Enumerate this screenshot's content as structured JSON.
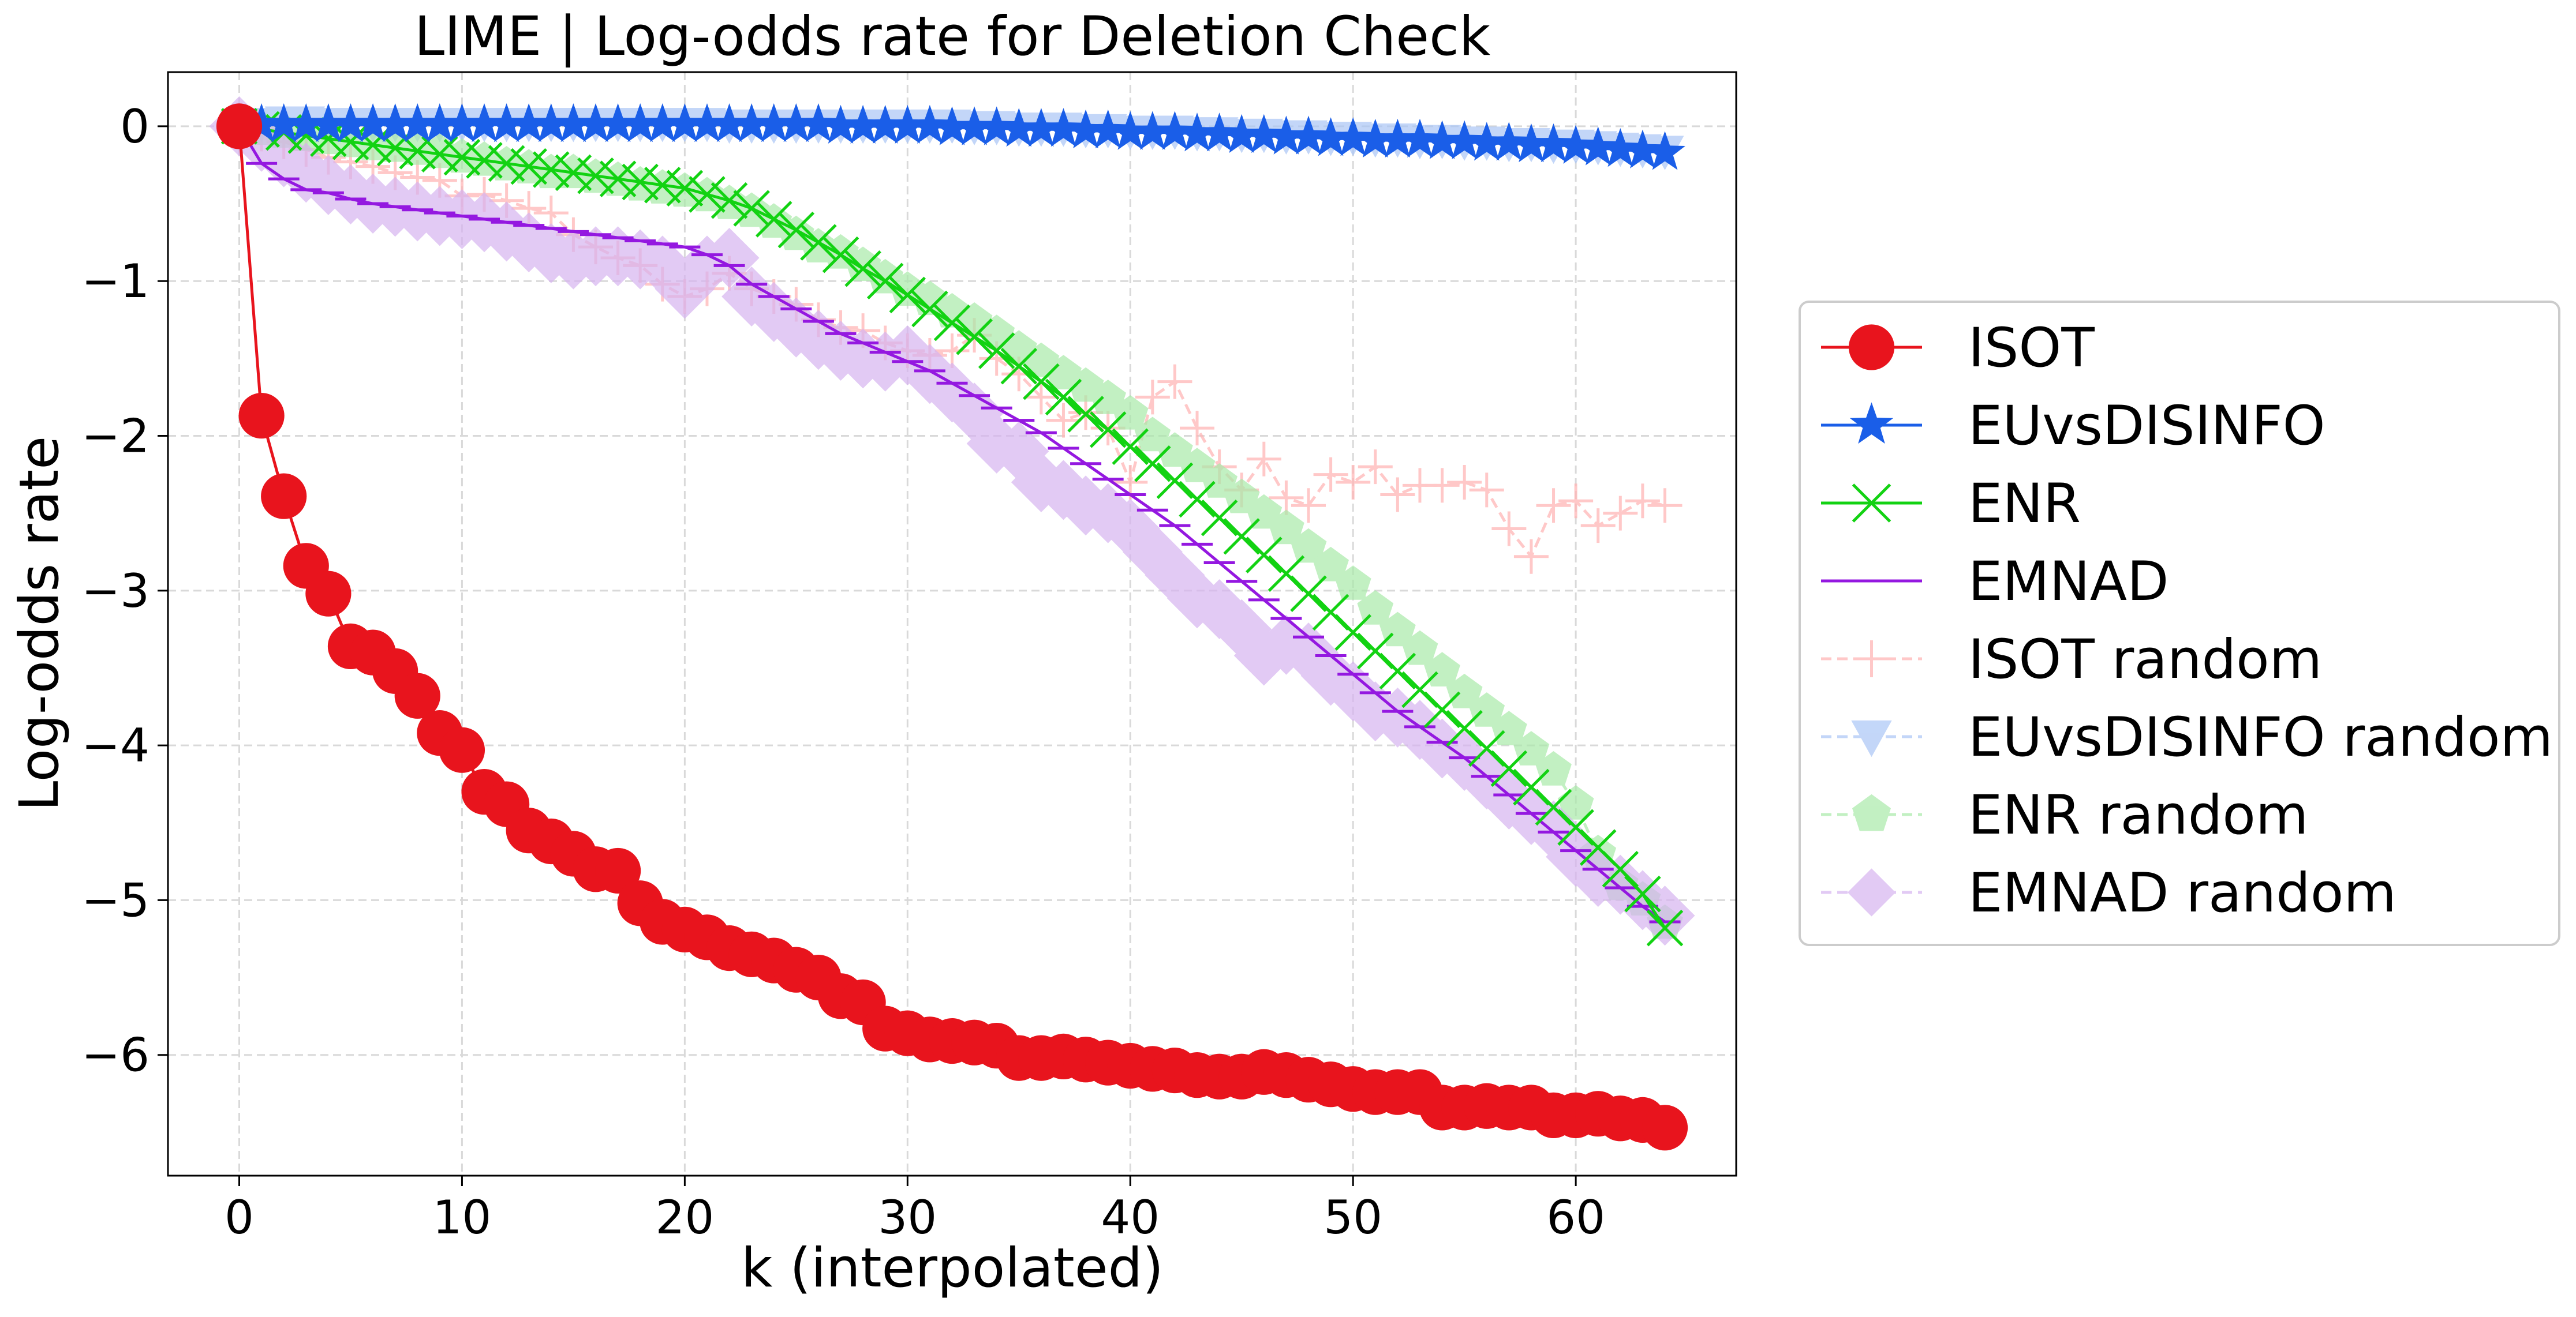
{
  "chart_data": {
    "type": "line",
    "title": "LIME | Log-odds rate for Deletion Check",
    "xlabel": "k (interpolated)",
    "ylabel": "Log-odds rate",
    "xlim": [
      -3.2,
      67.2
    ],
    "ylim": [
      -6.78,
      0.35
    ],
    "xticks": [
      0,
      10,
      20,
      30,
      40,
      50,
      60
    ],
    "yticks": [
      0,
      -1,
      -2,
      -3,
      -4,
      -5,
      -6
    ],
    "xtick_labels": [
      "0",
      "10",
      "20",
      "30",
      "40",
      "50",
      "60"
    ],
    "ytick_labels": [
      "0",
      "−1",
      "−2",
      "−3",
      "−4",
      "−5",
      "−6"
    ],
    "grid": true,
    "legend_position": "center-right-outside",
    "series": [
      {
        "name": "ISOT",
        "color": "#e8141d",
        "marker": "circle",
        "dashed": false,
        "opacity": 1,
        "values": [
          0,
          -1.87,
          -2.39,
          -2.84,
          -3.02,
          -3.36,
          -3.4,
          -3.52,
          -3.68,
          -3.92,
          -4.03,
          -4.3,
          -4.38,
          -4.55,
          -4.62,
          -4.7,
          -4.8,
          -4.81,
          -5.02,
          -5.14,
          -5.19,
          -5.24,
          -5.31,
          -5.35,
          -5.39,
          -5.45,
          -5.5,
          -5.62,
          -5.66,
          -5.83,
          -5.86,
          -5.9,
          -5.91,
          -5.92,
          -5.94,
          -6.02,
          -6.02,
          -6.01,
          -6.03,
          -6.05,
          -6.07,
          -6.09,
          -6.1,
          -6.13,
          -6.14,
          -6.14,
          -6.11,
          -6.13,
          -6.16,
          -6.19,
          -6.22,
          -6.24,
          -6.24,
          -6.24,
          -6.34,
          -6.34,
          -6.33,
          -6.34,
          -6.34,
          -6.39,
          -6.39,
          -6.38,
          -6.41,
          -6.42,
          -6.47
        ]
      },
      {
        "name": "EUvsDISINFO",
        "color": "#1a5ee8",
        "marker": "star",
        "dashed": false,
        "opacity": 1,
        "values": [
          0,
          0.01,
          0.01,
          0.01,
          0.01,
          0.01,
          0.01,
          0.01,
          0.01,
          0.01,
          0.01,
          0.01,
          0.01,
          0.01,
          0.01,
          0.01,
          0.01,
          0.01,
          0.01,
          0.01,
          0.01,
          0.01,
          0.01,
          0.01,
          0.01,
          0.01,
          0.01,
          0,
          0,
          0,
          0,
          0,
          -0.01,
          -0.01,
          -0.01,
          -0.02,
          -0.02,
          -0.02,
          -0.03,
          -0.03,
          -0.04,
          -0.04,
          -0.04,
          -0.05,
          -0.05,
          -0.06,
          -0.06,
          -0.07,
          -0.07,
          -0.08,
          -0.08,
          -0.09,
          -0.09,
          -0.09,
          -0.1,
          -0.1,
          -0.11,
          -0.11,
          -0.12,
          -0.12,
          -0.13,
          -0.14,
          -0.15,
          -0.16,
          -0.17
        ]
      },
      {
        "name": "ENR",
        "color": "#12d212",
        "marker": "x",
        "dashed": false,
        "opacity": 1,
        "values": [
          0,
          -0.02,
          -0.04,
          -0.06,
          -0.08,
          -0.1,
          -0.12,
          -0.14,
          -0.16,
          -0.18,
          -0.2,
          -0.22,
          -0.24,
          -0.26,
          -0.28,
          -0.3,
          -0.32,
          -0.34,
          -0.36,
          -0.38,
          -0.4,
          -0.44,
          -0.48,
          -0.53,
          -0.6,
          -0.67,
          -0.75,
          -0.83,
          -0.92,
          -1.0,
          -1.09,
          -1.18,
          -1.27,
          -1.36,
          -1.45,
          -1.55,
          -1.65,
          -1.75,
          -1.86,
          -1.96,
          -2.07,
          -2.18,
          -2.29,
          -2.41,
          -2.53,
          -2.65,
          -2.77,
          -2.89,
          -3.02,
          -3.14,
          -3.27,
          -3.39,
          -3.52,
          -3.64,
          -3.77,
          -3.89,
          -4.02,
          -4.15,
          -4.27,
          -4.4,
          -4.53,
          -4.66,
          -4.8,
          -4.96,
          -5.18
        ]
      },
      {
        "name": "EMNAD",
        "color": "#9418e0",
        "marker": "hline",
        "dashed": false,
        "opacity": 1,
        "values": [
          0,
          -0.24,
          -0.34,
          -0.41,
          -0.43,
          -0.47,
          -0.5,
          -0.52,
          -0.54,
          -0.56,
          -0.58,
          -0.6,
          -0.62,
          -0.64,
          -0.66,
          -0.68,
          -0.7,
          -0.72,
          -0.74,
          -0.76,
          -0.78,
          -0.83,
          -0.9,
          -1.02,
          -1.1,
          -1.18,
          -1.26,
          -1.34,
          -1.4,
          -1.46,
          -1.52,
          -1.58,
          -1.66,
          -1.74,
          -1.82,
          -1.9,
          -1.98,
          -2.08,
          -2.18,
          -2.28,
          -2.38,
          -2.48,
          -2.58,
          -2.7,
          -2.82,
          -2.94,
          -3.06,
          -3.18,
          -3.3,
          -3.42,
          -3.54,
          -3.66,
          -3.78,
          -3.88,
          -3.98,
          -4.08,
          -4.2,
          -4.32,
          -4.44,
          -4.56,
          -4.68,
          -4.8,
          -4.92,
          -5.04,
          -5.14
        ]
      },
      {
        "name": "ISOT random",
        "color": "#ffb6b6",
        "marker": "plus",
        "dashed": true,
        "opacity": 0.75,
        "values": [
          0,
          -0.05,
          -0.1,
          -0.15,
          -0.2,
          -0.23,
          -0.26,
          -0.3,
          -0.33,
          -0.35,
          -0.45,
          -0.44,
          -0.48,
          -0.53,
          -0.56,
          -0.7,
          -0.78,
          -0.85,
          -0.9,
          -1.02,
          -1.1,
          -1.05,
          -0.95,
          -1.05,
          -1.1,
          -1.15,
          -1.25,
          -1.3,
          -1.32,
          -1.4,
          -1.45,
          -1.48,
          -1.45,
          -1.35,
          -1.5,
          -1.6,
          -1.75,
          -1.9,
          -1.85,
          -1.95,
          -2.3,
          -1.75,
          -1.65,
          -1.95,
          -2.2,
          -2.35,
          -2.15,
          -2.4,
          -2.45,
          -2.25,
          -2.3,
          -2.2,
          -2.38,
          -2.32,
          -2.32,
          -2.3,
          -2.35,
          -2.6,
          -2.78,
          -2.45,
          -2.42,
          -2.58,
          -2.5,
          -2.42,
          -2.45
        ]
      },
      {
        "name": "EUvsDISINFO random",
        "color": "#aac6f6",
        "marker": "triangle-down",
        "dashed": true,
        "opacity": 0.7,
        "values": [
          0,
          0.02,
          0.03,
          0.03,
          0.02,
          0.02,
          0.02,
          0.02,
          0.02,
          0.02,
          0.02,
          0.02,
          0.02,
          0.02,
          0.02,
          0.02,
          0.02,
          0.02,
          0.02,
          0.02,
          0.02,
          0.02,
          0.01,
          0.01,
          0.01,
          0.01,
          0.01,
          0.01,
          0.01,
          0.01,
          0.01,
          0.01,
          0.01,
          0,
          0,
          -0.01,
          -0.01,
          -0.01,
          -0.02,
          -0.02,
          -0.03,
          -0.03,
          -0.03,
          -0.04,
          -0.04,
          -0.05,
          -0.05,
          -0.06,
          -0.06,
          -0.07,
          -0.07,
          -0.08,
          -0.08,
          -0.09,
          -0.09,
          -0.1,
          -0.1,
          -0.11,
          -0.11,
          -0.12,
          -0.12,
          -0.13,
          -0.14,
          -0.15,
          -0.16
        ]
      },
      {
        "name": "ENR random",
        "color": "#a9eaa9",
        "marker": "pentagon",
        "dashed": true,
        "opacity": 0.7,
        "values": [
          0,
          -0.02,
          -0.04,
          -0.06,
          -0.08,
          -0.1,
          -0.12,
          -0.13,
          -0.15,
          -0.17,
          -0.2,
          -0.22,
          -0.25,
          -0.27,
          -0.3,
          -0.3,
          -0.33,
          -0.35,
          -0.38,
          -0.4,
          -0.42,
          -0.45,
          -0.5,
          -0.55,
          -0.62,
          -0.7,
          -0.78,
          -0.82,
          -0.9,
          -0.98,
          -1.06,
          -1.12,
          -1.2,
          -1.26,
          -1.34,
          -1.44,
          -1.52,
          -1.6,
          -1.68,
          -1.76,
          -1.86,
          -2.0,
          -2.1,
          -2.2,
          -2.3,
          -2.4,
          -2.5,
          -2.6,
          -2.72,
          -2.84,
          -2.96,
          -3.12,
          -3.26,
          -3.38,
          -3.52,
          -3.66,
          -3.78,
          -3.9,
          -4.03,
          -4.16,
          -4.38,
          -4.7,
          -4.9,
          -5.0,
          -5.15
        ]
      },
      {
        "name": "EMNAD random",
        "color": "#d7b4f0",
        "marker": "diamond",
        "dashed": true,
        "opacity": 0.7,
        "values": [
          0,
          -0.1,
          -0.2,
          -0.3,
          -0.38,
          -0.44,
          -0.5,
          -0.52,
          -0.55,
          -0.58,
          -0.6,
          -0.62,
          -0.68,
          -0.75,
          -0.82,
          -0.86,
          -0.84,
          -0.84,
          -0.86,
          -0.9,
          -1.05,
          -0.9,
          -0.85,
          -1.1,
          -1.2,
          -1.3,
          -1.38,
          -1.45,
          -1.5,
          -1.52,
          -1.48,
          -1.6,
          -1.72,
          -1.85,
          -2.05,
          -2.1,
          -2.3,
          -2.35,
          -2.45,
          -2.5,
          -2.6,
          -2.75,
          -2.9,
          -3.05,
          -3.12,
          -3.25,
          -3.42,
          -3.35,
          -3.4,
          -3.55,
          -3.65,
          -3.78,
          -3.82,
          -3.9,
          -4.02,
          -4.1,
          -4.22,
          -4.35,
          -4.45,
          -4.55,
          -4.72,
          -4.85,
          -4.9,
          -5.0,
          -5.1
        ]
      }
    ]
  }
}
